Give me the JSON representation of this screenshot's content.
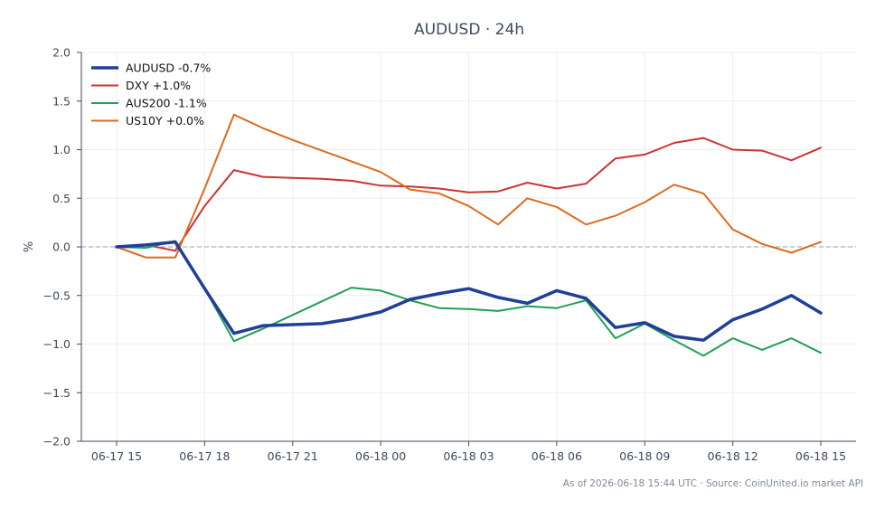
{
  "chart_data": {
    "type": "line",
    "title": "AUDUSD · 24h",
    "ylabel": "%",
    "xlabel": "",
    "ylim": [
      -2.0,
      2.0
    ],
    "yticks": [
      2.0,
      1.5,
      1.0,
      0.5,
      0.0,
      -0.5,
      -1.0,
      -1.5,
      -2.0
    ],
    "ytick_labels": [
      "2.0",
      "1.5",
      "1.0",
      "0.5",
      "0.0",
      "−0.5",
      "−1.0",
      "−1.5",
      "−2.0"
    ],
    "x": [
      "06-17 15:00",
      "06-17 16:00",
      "06-17 17:00",
      "06-17 18:00",
      "06-17 19:00",
      "06-17 20:00",
      "06-17 21:00",
      "06-17 22:00",
      "06-17 23:00",
      "06-18 00:00",
      "06-18 01:00",
      "06-18 02:00",
      "06-18 03:00",
      "06-18 04:00",
      "06-18 05:00",
      "06-18 06:00",
      "06-18 07:00",
      "06-18 08:00",
      "06-18 09:00",
      "06-18 10:00",
      "06-18 11:00",
      "06-18 12:00",
      "06-18 13:00",
      "06-18 14:00",
      "06-18 15:00"
    ],
    "xticks": [
      "06-17 15",
      "06-17 18",
      "06-17 21",
      "06-18 00",
      "06-18 03",
      "06-18 06",
      "06-18 09",
      "06-18 12",
      "06-18 15"
    ],
    "xtick_index": [
      0,
      3,
      6,
      9,
      12,
      15,
      18,
      21,
      24
    ],
    "grid": true,
    "zero_line": true,
    "legend_position": "top-left",
    "series": [
      {
        "name": "AUDUSD -0.7%",
        "color": "#1f3f99",
        "emphasis": true,
        "values": [
          0.0,
          0.02,
          0.05,
          -0.43,
          -0.89,
          -0.81,
          -0.8,
          -0.79,
          -0.74,
          -0.67,
          -0.54,
          -0.48,
          -0.43,
          -0.52,
          -0.58,
          -0.45,
          -0.53,
          -0.83,
          -0.78,
          -0.92,
          -0.96,
          -0.75,
          -0.64,
          -0.5,
          -0.68
        ]
      },
      {
        "name": "DXY +1.0%",
        "color": "#cc3333",
        "values": [
          0.0,
          0.02,
          -0.04,
          0.42,
          0.79,
          0.72,
          0.71,
          0.7,
          0.68,
          0.63,
          0.62,
          0.6,
          0.56,
          0.57,
          0.66,
          0.6,
          0.65,
          0.91,
          0.95,
          1.07,
          1.12,
          1.0,
          0.99,
          0.89,
          1.02
        ]
      },
      {
        "name": "AUS200 -1.1%",
        "color": "#22a053",
        "values": [
          0.0,
          -0.01,
          0.06,
          -0.43,
          -0.97,
          -0.84,
          -0.7,
          -0.56,
          -0.42,
          -0.45,
          -0.55,
          -0.63,
          -0.64,
          -0.66,
          -0.61,
          -0.63,
          -0.55,
          -0.94,
          -0.79,
          -0.96,
          -1.12,
          -0.94,
          -1.06,
          -0.94,
          -1.09
        ]
      },
      {
        "name": "US10Y +0.0%",
        "color": "#de6a1c",
        "values": [
          0.0,
          -0.11,
          -0.11,
          0.6,
          1.36,
          1.22,
          1.1,
          0.99,
          0.88,
          0.77,
          0.59,
          0.55,
          0.42,
          0.23,
          0.5,
          0.41,
          0.23,
          0.32,
          0.46,
          0.64,
          0.55,
          0.18,
          0.03,
          -0.06,
          0.05
        ]
      }
    ],
    "footnote": "As of 2026-06-18 15:44 UTC · Source: CoinUnited.io market API"
  }
}
